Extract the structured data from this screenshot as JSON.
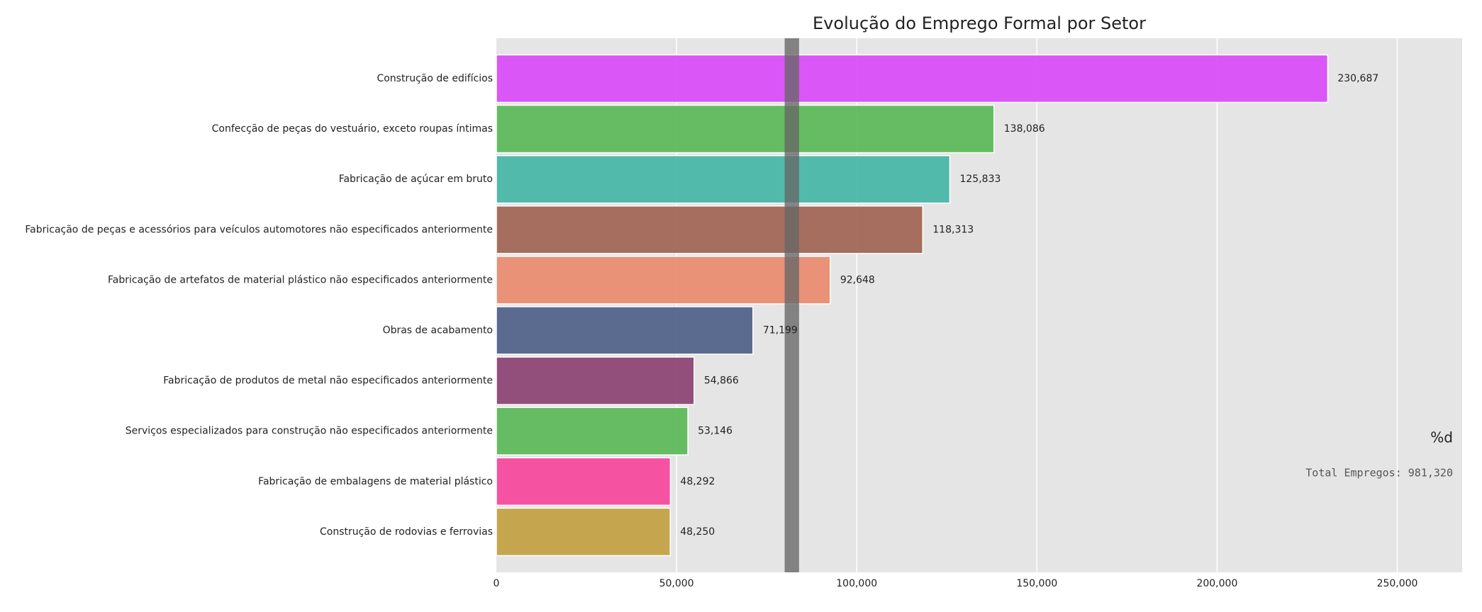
{
  "chart_data": {
    "type": "bar",
    "orientation": "horizontal",
    "title": "Evolução do Emprego Formal por Setor",
    "xlabel": "",
    "ylabel": "",
    "xlim": [
      0,
      268000
    ],
    "x_ticks": [
      0,
      50000,
      100000,
      150000,
      200000,
      250000
    ],
    "x_tick_labels": [
      "0",
      "50,000",
      "100,000",
      "150,000",
      "200,000",
      "250,000"
    ],
    "grid": true,
    "categories": [
      "Construção de edifícios",
      "Confecção de peças do vestuário, exceto roupas íntimas",
      "Fabricação de açúcar em bruto",
      "Fabricação de peças e acessórios para veículos automotores não especificados anteriormente",
      "Fabricação de artefatos de material plástico não especificados anteriormente",
      "Obras de acabamento",
      "Fabricação de produtos de metal não especificados anteriormente",
      "Serviços especializados para construção não especificados anteriormente",
      "Fabricação de embalagens de material plástico",
      "Construção de rodovias e ferrovias"
    ],
    "values": [
      230687,
      138086,
      125833,
      118313,
      92648,
      71199,
      54866,
      53146,
      48292,
      48250
    ],
    "value_labels": [
      "230,687",
      "138,086",
      "125,833",
      "118,313",
      "92,648",
      "71,199",
      "54,866",
      "53,146",
      "48,292",
      "48,250"
    ],
    "colors": [
      "#d94af8",
      "#5ab957",
      "#45b6a6",
      "#a06454",
      "#e98b6e",
      "#4f6088",
      "#8b4272",
      "#5ab957",
      "#f6479c",
      "#c39f42"
    ],
    "vertical_band": {
      "from": 80000,
      "to": 84000,
      "color": "#666666"
    },
    "side_label": "%d",
    "total_label": "Total Empregos: 981,320"
  }
}
